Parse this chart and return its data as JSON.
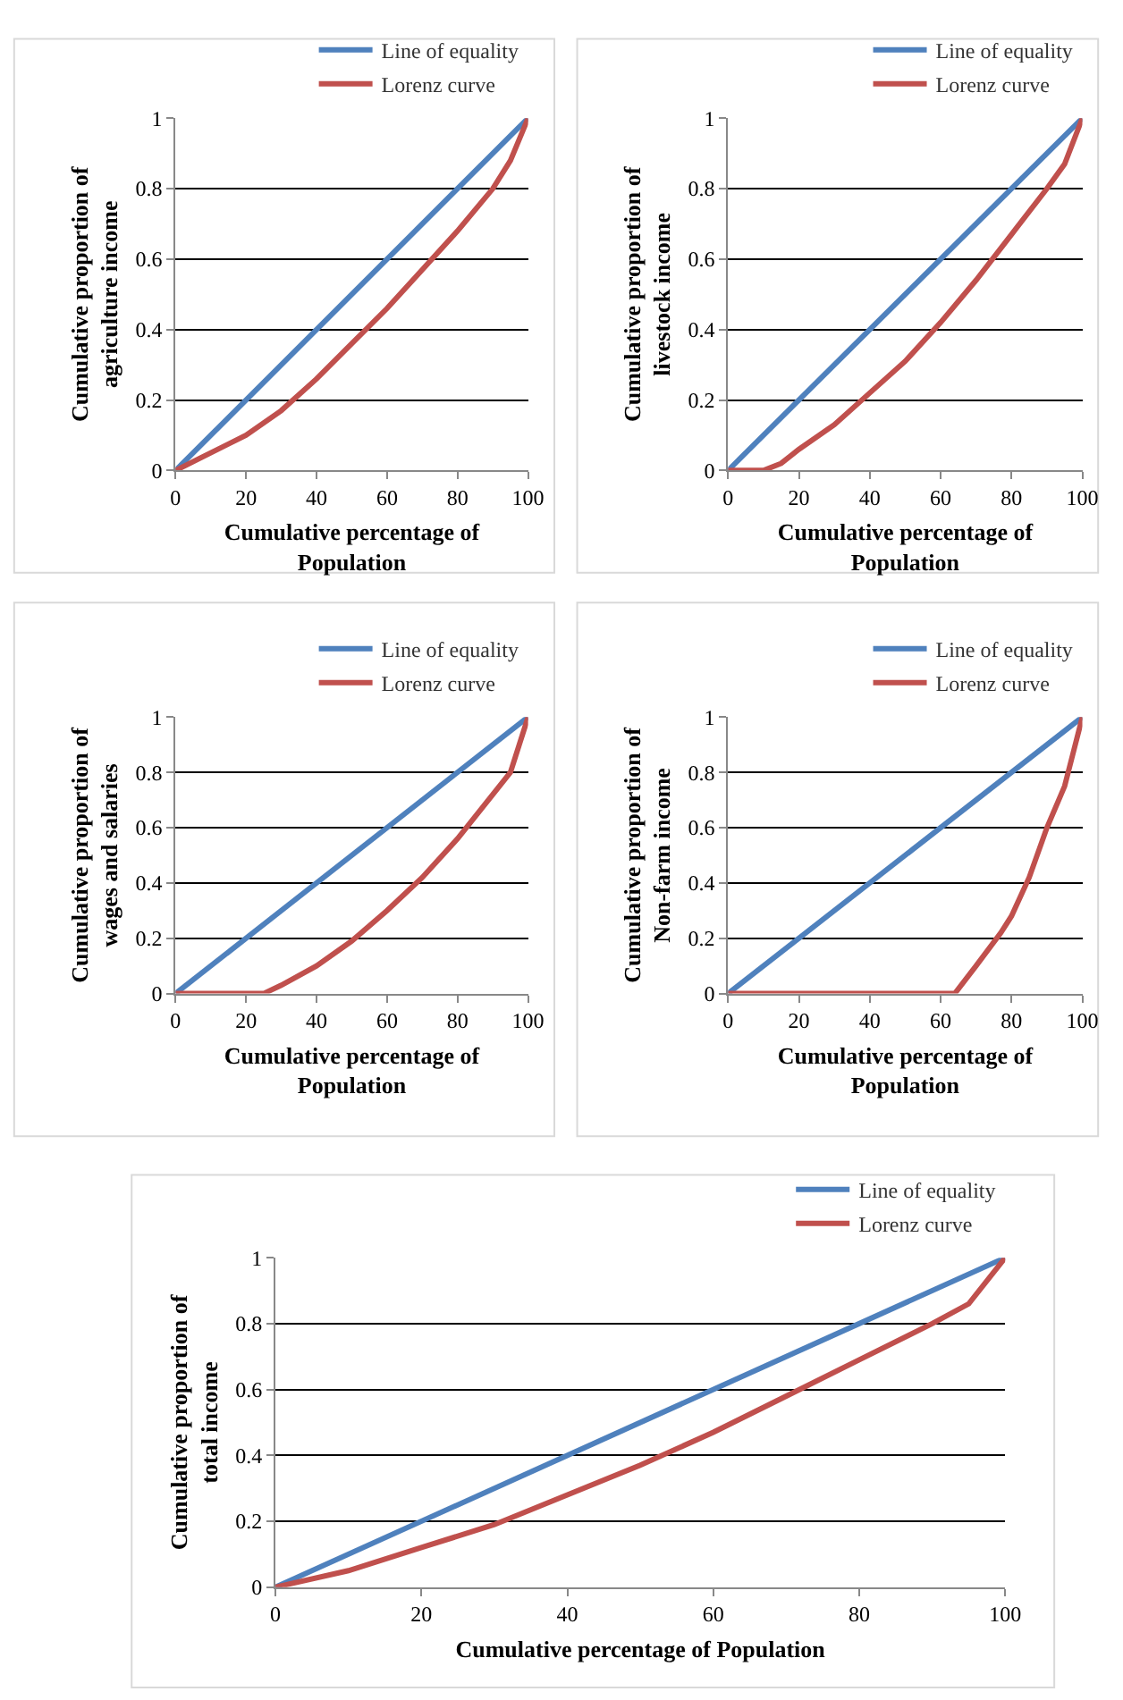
{
  "chart_data": [
    {
      "type": "line",
      "xlabel": "Cumulative percentage of Population",
      "ylabel": "Cumulative proportion of agriculture income",
      "xlim": [
        0,
        100
      ],
      "xticks": [
        0,
        20,
        40,
        60,
        80,
        100
      ],
      "ylim": [
        0,
        1
      ],
      "yticks": [
        0,
        0.2,
        0.4,
        0.6,
        0.8,
        1
      ],
      "grid": "y",
      "legend": "top right",
      "marker": "none",
      "series": [
        {
          "name": "Line of equality",
          "color": "#4f81bd",
          "x": [
            0,
            100
          ],
          "values": [
            0,
            1
          ]
        },
        {
          "name": "Lorenz curve",
          "color": "#c0504d",
          "x": [
            0,
            10,
            20,
            30,
            40,
            50,
            60,
            70,
            80,
            90,
            95,
            100
          ],
          "values": [
            0,
            0.05,
            0.1,
            0.17,
            0.26,
            0.36,
            0.46,
            0.57,
            0.68,
            0.8,
            0.88,
            1
          ]
        }
      ]
    },
    {
      "type": "line",
      "xlabel": "Cumulative percentage of Population",
      "ylabel": "Cumulative proportion of livestock income",
      "xlim": [
        0,
        100
      ],
      "xticks": [
        0,
        20,
        40,
        60,
        80,
        100
      ],
      "ylim": [
        0,
        1
      ],
      "yticks": [
        0,
        0.2,
        0.4,
        0.6,
        0.8,
        1
      ],
      "grid": "y",
      "legend": "top right",
      "marker": "none",
      "series": [
        {
          "name": "Line of equality",
          "color": "#4f81bd",
          "x": [
            0,
            100
          ],
          "values": [
            0,
            1
          ]
        },
        {
          "name": "Lorenz curve",
          "color": "#c0504d",
          "x": [
            0,
            5,
            10,
            15,
            20,
            30,
            40,
            50,
            60,
            70,
            80,
            90,
            95,
            100
          ],
          "values": [
            0,
            0,
            0,
            0.02,
            0.06,
            0.13,
            0.22,
            0.31,
            0.42,
            0.54,
            0.67,
            0.8,
            0.87,
            1
          ]
        }
      ]
    },
    {
      "type": "line",
      "xlabel": "Cumulative percentage of Population",
      "ylabel": "Cumulative proportion of wages and salaries",
      "xlim": [
        0,
        100
      ],
      "xticks": [
        0,
        20,
        40,
        60,
        80,
        100
      ],
      "ylim": [
        0,
        1
      ],
      "yticks": [
        0,
        0.2,
        0.4,
        0.6,
        0.8,
        1
      ],
      "grid": "y",
      "legend": "top right",
      "marker": "none",
      "series": [
        {
          "name": "Line of equality",
          "color": "#4f81bd",
          "x": [
            0,
            100
          ],
          "values": [
            0,
            1
          ]
        },
        {
          "name": "Lorenz curve",
          "color": "#c0504d",
          "x": [
            0,
            10,
            20,
            25,
            30,
            40,
            50,
            60,
            70,
            80,
            90,
            95,
            100
          ],
          "values": [
            0,
            0,
            0,
            0,
            0.03,
            0.1,
            0.19,
            0.3,
            0.42,
            0.56,
            0.72,
            0.8,
            1
          ]
        }
      ]
    },
    {
      "type": "line",
      "xlabel": "Cumulative percentage of Population",
      "ylabel": "Cumulative proportion of Non-farm income",
      "xlim": [
        0,
        100
      ],
      "xticks": [
        0,
        20,
        40,
        60,
        80,
        100
      ],
      "ylim": [
        0,
        1
      ],
      "yticks": [
        0,
        0.2,
        0.4,
        0.6,
        0.8,
        1
      ],
      "grid": "y",
      "legend": "top right",
      "marker": "none",
      "series": [
        {
          "name": "Line of equality",
          "color": "#4f81bd",
          "x": [
            0,
            100
          ],
          "values": [
            0,
            1
          ]
        },
        {
          "name": "Lorenz curve",
          "color": "#c0504d",
          "x": [
            0,
            20,
            40,
            60,
            64,
            70,
            77,
            80,
            85,
            90,
            95,
            97,
            100
          ],
          "values": [
            0,
            0,
            0,
            0,
            0,
            0.1,
            0.22,
            0.28,
            0.42,
            0.6,
            0.75,
            0.85,
            1
          ]
        }
      ]
    },
    {
      "type": "line",
      "xlabel": "Cumulative percentage of Population",
      "ylabel": "Cumulative proportion of total income",
      "xlim": [
        0,
        100
      ],
      "xticks": [
        0,
        20,
        40,
        60,
        80,
        100
      ],
      "ylim": [
        0,
        1
      ],
      "yticks": [
        0,
        0.2,
        0.4,
        0.6,
        0.8,
        1
      ],
      "grid": "y",
      "legend": "top right",
      "marker": "none",
      "series": [
        {
          "name": "Line of equality",
          "color": "#4f81bd",
          "x": [
            0,
            100
          ],
          "values": [
            0,
            1
          ]
        },
        {
          "name": "Lorenz curve",
          "color": "#c0504d",
          "x": [
            0,
            10,
            20,
            30,
            40,
            50,
            60,
            70,
            80,
            90,
            95,
            100
          ],
          "values": [
            0,
            0.05,
            0.12,
            0.19,
            0.28,
            0.37,
            0.47,
            0.58,
            0.69,
            0.8,
            0.86,
            1
          ]
        }
      ]
    }
  ]
}
